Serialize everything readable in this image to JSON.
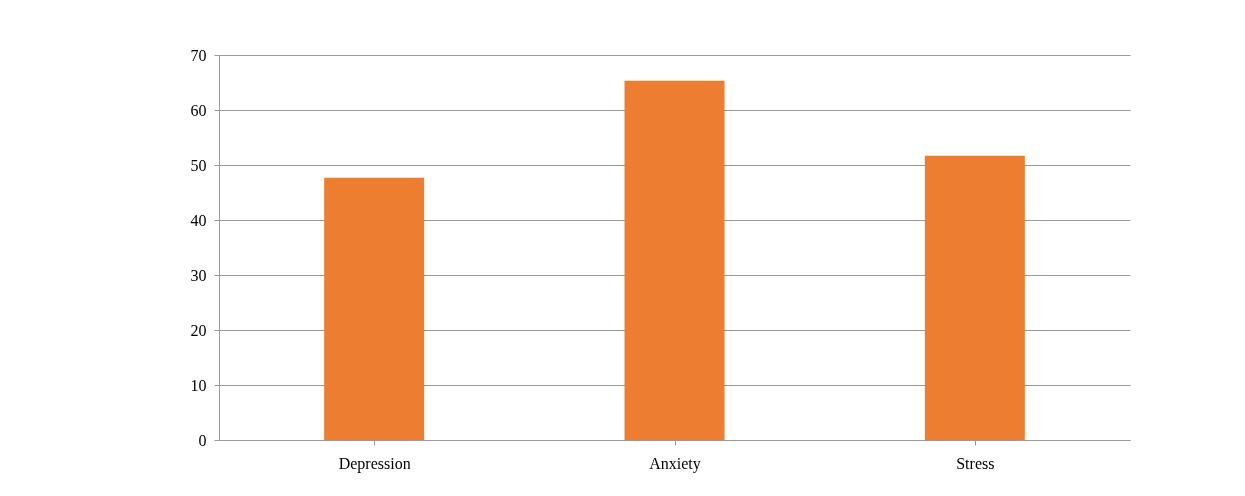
{
  "chart_data": {
    "type": "bar",
    "categories": [
      "Depression",
      "Anxiety",
      "Stress"
    ],
    "values": [
      47.7,
      65.3,
      51.7
    ],
    "color": "#ed7d31",
    "ylim": [
      0,
      70
    ],
    "yticks": [
      0,
      10,
      20,
      30,
      40,
      50,
      60,
      70
    ],
    "grid": "y"
  }
}
